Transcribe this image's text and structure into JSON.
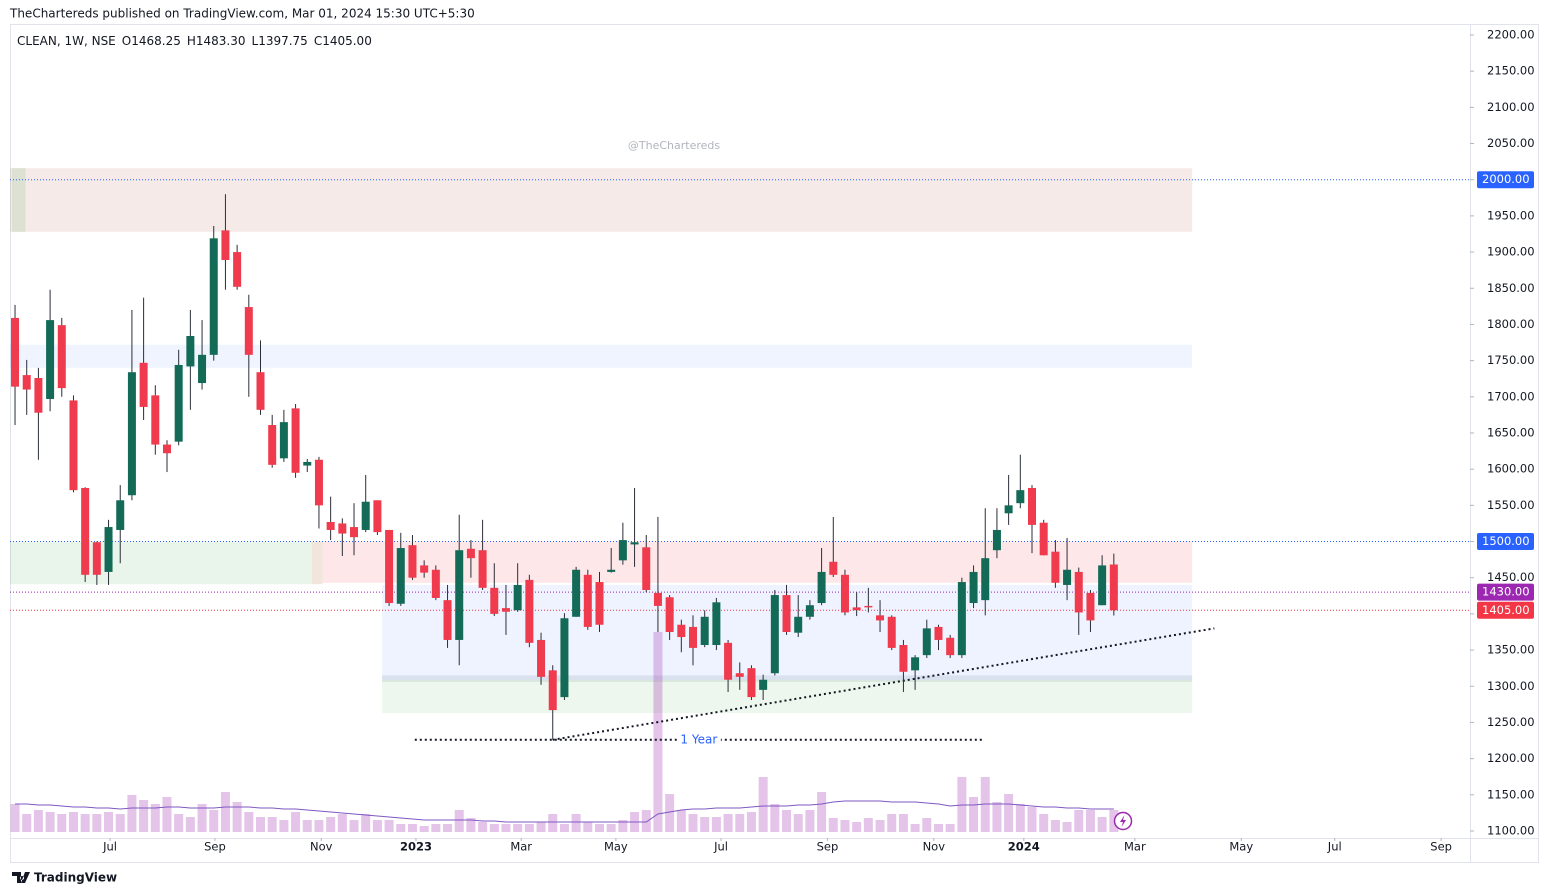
{
  "published": "TheChartereds published on TradingView.com, Mar 01, 2024 15:30 UTC+5:30",
  "footer": "TradingView",
  "chart_data": {
    "type": "candlestick",
    "header": {
      "symbol": "CLEAN, 1W, NSE",
      "ohlc": [
        {
          "key": "O",
          "value": "1468.25"
        },
        {
          "key": "H",
          "value": "1483.30"
        },
        {
          "key": "L",
          "value": "1397.75"
        },
        {
          "key": "C",
          "value": "1405.00"
        }
      ]
    },
    "watermark": "@TheChartereds",
    "up_color": "#136a56",
    "down_color": "#ef3b4d",
    "wick_color": "#2a2e39",
    "open": [
      1809,
      1730,
      1726,
      1697,
      1799,
      1695,
      1574,
      1499,
      1458,
      1516,
      1564,
      1747,
      1702,
      1634,
      1638,
      1742,
      1719,
      1758,
      1930,
      1900,
      1824,
      1734,
      1661,
      1615,
      1684,
      1605,
      1613,
      1527,
      1525,
      1520,
      1516,
      1557,
      1516,
      1414,
      1495,
      1467,
      1461,
      1419,
      1364,
      1490,
      1488,
      1436,
      1408,
      1405,
      1447,
      1364,
      1322,
      1285,
      1396,
      1454,
      1444,
      1458,
      1474,
      1496,
      1492,
      1429,
      1423,
      1385,
      1382,
      1357,
      1357,
      1360,
      1318,
      1325,
      1295,
      1318,
      1426,
      1374,
      1396,
      1415,
      1472,
      1454,
      1409,
      1411,
      1398,
      1396,
      1357,
      1322,
      1343,
      1382,
      1367,
      1343,
      1415,
      1419,
      1488,
      1539,
      1553,
      1574,
      1526,
      1486,
      1440,
      1458,
      1429,
      1412,
      1468.25
    ],
    "high": [
      1827,
      1751,
      1740,
      1848,
      1809,
      1702,
      1575,
      1500,
      1530,
      1578,
      1820,
      1837,
      1716,
      1640,
      1765,
      1820,
      1806,
      1936,
      1980,
      1910,
      1841,
      1778,
      1675,
      1682,
      1690,
      1614,
      1617,
      1562,
      1532,
      1553,
      1592,
      1557,
      1516,
      1512,
      1509,
      1474,
      1467,
      1440,
      1537,
      1502,
      1530,
      1470,
      1440,
      1470,
      1454,
      1374,
      1329,
      1401,
      1465,
      1461,
      1458,
      1491,
      1526,
      1574,
      1509,
      1534,
      1426,
      1392,
      1398,
      1405,
      1422,
      1364,
      1333,
      1329,
      1316,
      1433,
      1440,
      1426,
      1419,
      1491,
      1534,
      1461,
      1430,
      1436,
      1419,
      1398,
      1364,
      1343,
      1392,
      1385,
      1371,
      1450,
      1467,
      1546,
      1546,
      1592,
      1620,
      1578,
      1530,
      1502,
      1505,
      1464,
      1433,
      1481,
      1483.3
    ],
    "low": [
      1661,
      1675,
      1613,
      1680,
      1700,
      1568,
      1444,
      1440,
      1440,
      1470,
      1557,
      1668,
      1620,
      1596,
      1633,
      1682,
      1710,
      1750,
      1848,
      1848,
      1700,
      1675,
      1602,
      1610,
      1588,
      1596,
      1518,
      1502,
      1480,
      1481,
      1513,
      1509,
      1411,
      1411,
      1447,
      1450,
      1419,
      1353,
      1329,
      1450,
      1433,
      1397,
      1371,
      1403,
      1354,
      1302,
      1226,
      1281,
      1396,
      1378,
      1375,
      1457,
      1468,
      1465,
      1430,
      1375,
      1364,
      1347,
      1329,
      1354,
      1350,
      1292,
      1295,
      1281,
      1281,
      1315,
      1371,
      1368,
      1392,
      1412,
      1451,
      1398,
      1397,
      1402,
      1375,
      1350,
      1292,
      1295,
      1339,
      1350,
      1339,
      1339,
      1408,
      1398,
      1477,
      1523,
      1546,
      1484,
      1481,
      1436,
      1419,
      1371,
      1375,
      1412,
      1397.75
    ],
    "close": [
      1714,
      1710,
      1678,
      1806,
      1712,
      1571,
      1454,
      1454,
      1520,
      1557,
      1734,
      1686,
      1634,
      1622,
      1744,
      1784,
      1758,
      1919,
      1889,
      1852,
      1758,
      1682,
      1606,
      1665,
      1595,
      1610,
      1550,
      1516,
      1511,
      1506,
      1555,
      1513,
      1415,
      1491,
      1450,
      1457,
      1422,
      1364,
      1488,
      1477,
      1436,
      1400,
      1403,
      1440,
      1360,
      1313,
      1267,
      1394,
      1461,
      1382,
      1385,
      1461,
      1502,
      1499,
      1433,
      1411,
      1375,
      1368,
      1353,
      1396,
      1416,
      1309,
      1313,
      1285,
      1309,
      1426,
      1375,
      1396,
      1412,
      1458,
      1454,
      1402,
      1405,
      1409,
      1391,
      1353,
      1320,
      1340,
      1380,
      1364,
      1343,
      1444,
      1458,
      1477,
      1516,
      1550,
      1571,
      1523,
      1481,
      1443,
      1461,
      1402,
      1391,
      1467,
      1405
    ],
    "volume": [
      28,
      18,
      22,
      20,
      18,
      20,
      18,
      18,
      20,
      18,
      37,
      32,
      28,
      35,
      18,
      15,
      28,
      22,
      40,
      30,
      20,
      15,
      15,
      12,
      20,
      12,
      12,
      15,
      18,
      12,
      18,
      12,
      12,
      8,
      8,
      6,
      8,
      8,
      22,
      14,
      10,
      8,
      8,
      8,
      8,
      10,
      18,
      8,
      18,
      10,
      8,
      8,
      12,
      20,
      22,
      200,
      38,
      22,
      18,
      15,
      15,
      18,
      18,
      20,
      55,
      28,
      22,
      18,
      22,
      40,
      14,
      12,
      10,
      14,
      12,
      18,
      18,
      8,
      14,
      8,
      8,
      55,
      35,
      55,
      30,
      38,
      28,
      25,
      18,
      12,
      10,
      22,
      22,
      15,
      22
    ],
    "volume_ma": [
      28,
      28,
      27,
      27,
      26,
      25,
      25,
      24,
      24,
      23,
      24,
      24,
      24,
      25,
      25,
      24,
      24,
      24,
      25,
      25,
      25,
      24,
      24,
      23,
      23,
      22,
      21,
      20,
      19,
      18,
      17,
      16,
      15,
      14,
      13,
      12,
      12,
      12,
      12,
      12,
      11,
      11,
      10,
      10,
      10,
      10,
      10,
      10,
      10,
      10,
      10,
      10,
      10,
      10,
      10,
      18,
      20,
      22,
      23,
      23,
      24,
      24,
      24,
      25,
      26,
      26,
      26,
      27,
      27,
      28,
      30,
      31,
      31,
      31,
      31,
      30,
      30,
      30,
      29,
      28,
      26,
      27,
      27,
      28,
      28,
      28,
      27,
      26,
      25,
      25,
      24,
      24,
      23,
      23,
      23
    ],
    "volume_color": "rgba(171,71,188,0.32)",
    "volume_ma_color": "#7e57c2",
    "vlim": [
      0,
      200
    ],
    "xlim": [
      -0.43,
      124.47
    ],
    "xticks": [
      {
        "value": 8.13,
        "label": "Jul"
      },
      {
        "value": 17.1,
        "label": "Sep"
      },
      {
        "value": 26.2,
        "label": "Nov"
      },
      {
        "value": 34.3,
        "label": "2023"
      },
      {
        "value": 43.3,
        "label": "Mar"
      },
      {
        "value": 51.4,
        "label": "May"
      },
      {
        "value": 60.4,
        "label": "Jul"
      },
      {
        "value": 69.5,
        "label": "Sep"
      },
      {
        "value": 78.6,
        "label": "Nov"
      },
      {
        "value": 86.3,
        "label": "2024"
      },
      {
        "value": 95.8,
        "label": "Mar"
      },
      {
        "value": 104.9,
        "label": "May"
      },
      {
        "value": 112.9,
        "label": "Jul"
      },
      {
        "value": 122.0,
        "label": "Sep"
      }
    ],
    "ylim": [
      1090.3,
      2213.8
    ],
    "yticks": [
      {
        "value": 1100,
        "label": "1100.00"
      },
      {
        "value": 1150,
        "label": "1150.00"
      },
      {
        "value": 1200,
        "label": "1200.00"
      },
      {
        "value": 1250,
        "label": "1250.00"
      },
      {
        "value": 1300,
        "label": "1300.00"
      },
      {
        "value": 1350,
        "label": "1350.00"
      },
      {
        "value": 1400,
        "label": "1400.00"
      },
      {
        "value": 1450,
        "label": "1450.00"
      },
      {
        "value": 1500,
        "label": "1500.00"
      },
      {
        "value": 1550,
        "label": "1550.00"
      },
      {
        "value": 1600,
        "label": "1600.00"
      },
      {
        "value": 1650,
        "label": "1650.00"
      },
      {
        "value": 1700,
        "label": "1700.00"
      },
      {
        "value": 1750,
        "label": "1750.00"
      },
      {
        "value": 1800,
        "label": "1800.00"
      },
      {
        "value": 1850,
        "label": "1850.00"
      },
      {
        "value": 1900,
        "label": "1900.00"
      },
      {
        "value": 1950,
        "label": "1950.00"
      },
      {
        "value": 2000,
        "label": "2000.00"
      },
      {
        "value": 2050,
        "label": "2050.00"
      },
      {
        "value": 2100,
        "label": "2100.00"
      },
      {
        "value": 2150,
        "label": "2150.00"
      },
      {
        "value": 2200,
        "label": "2200.00"
      }
    ],
    "grid": false,
    "zones": [
      {
        "y": [
          2016,
          1928
        ],
        "x": [
          -0.43,
          100.7
        ],
        "color": "rgba(178,80,70,0.12)"
      },
      {
        "y": [
          2016,
          1928
        ],
        "x": [
          -0.26,
          0.9
        ],
        "color": "rgba(76,175,80,0.15)"
      },
      {
        "y": [
          1772,
          1740
        ],
        "x": [
          -0.43,
          100.7
        ],
        "color": "rgba(41,98,255,0.07)"
      },
      {
        "y": [
          1500,
          1441
        ],
        "x": [
          -0.43,
          25.4
        ],
        "color": "rgba(76,175,80,0.12)"
      },
      {
        "y": [
          1500,
          1441
        ],
        "x": [
          25.4,
          26.3
        ],
        "color": "rgba(190,140,90,0.22)"
      },
      {
        "y": [
          1500,
          1443
        ],
        "x": [
          26.3,
          100.7
        ],
        "color": "rgba(242,54,69,0.12)"
      },
      {
        "y": [
          1440,
          1309
        ],
        "x": [
          31.4,
          100.7
        ],
        "color": "rgba(41,98,255,0.08)"
      },
      {
        "y": [
          1315,
          1306
        ],
        "x": [
          31.4,
          100.7
        ],
        "color": "rgba(90,120,140,0.14)"
      },
      {
        "y": [
          1309,
          1263
        ],
        "x": [
          31.4,
          100.7
        ],
        "color": "rgba(76,175,80,0.1)"
      }
    ],
    "price_lines": [
      {
        "value": 2000,
        "label": "2000.00",
        "color": "#2962ff"
      },
      {
        "value": 1500,
        "label": "1500.00",
        "color": "#2962ff"
      },
      {
        "value": 1430,
        "label": "1430.00",
        "color": "#9c27b0"
      },
      {
        "value": 1405,
        "label": "1405.00",
        "color": "#f23645"
      }
    ],
    "trendline": {
      "x": [
        46,
        102.6
      ],
      "y": [
        1226,
        1380
      ]
    },
    "level_line": {
      "x": [
        34.2,
        82.8
      ],
      "y": 1226,
      "label": "1 Year",
      "color": "#2962ff"
    }
  }
}
